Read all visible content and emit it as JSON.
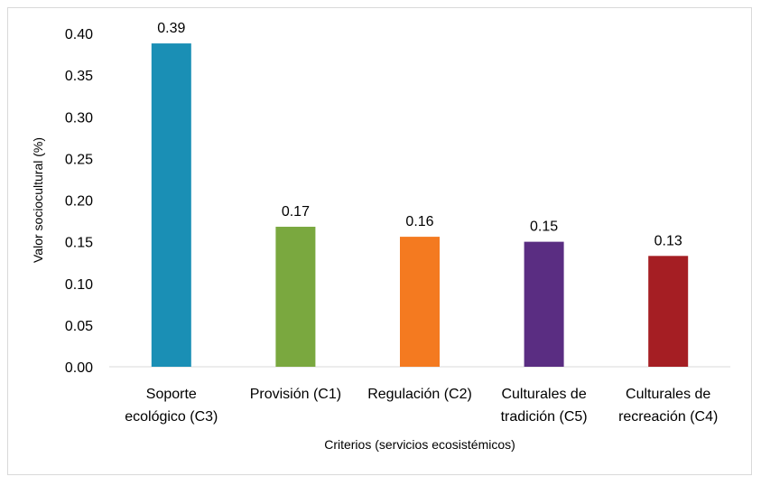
{
  "chart_data": {
    "type": "bar",
    "title": "",
    "xlabel": "Criterios (servicios ecosistémicos)",
    "ylabel": "Valor sociocultural (%)",
    "ylim": [
      0,
      0.4
    ],
    "yticks": [
      "0.00",
      "0.05",
      "0.10",
      "0.15",
      "0.20",
      "0.25",
      "0.30",
      "0.35",
      "0.40"
    ],
    "grid": false,
    "categories": [
      [
        "Soporte",
        "ecológico (C3)"
      ],
      [
        "Provisión (C1)"
      ],
      [
        "Regulación (C2)"
      ],
      [
        "Culturales de",
        "tradición (C5)"
      ],
      [
        "Culturales de",
        "recreación (C4)"
      ]
    ],
    "values": [
      0.388,
      0.168,
      0.156,
      0.15,
      0.133
    ],
    "data_labels": [
      "0.39",
      "0.17",
      "0.16",
      "0.15",
      "0.13"
    ],
    "colors": [
      "#1a8fb5",
      "#7aa83f",
      "#f47a20",
      "#5a2d82",
      "#a51e23"
    ]
  }
}
